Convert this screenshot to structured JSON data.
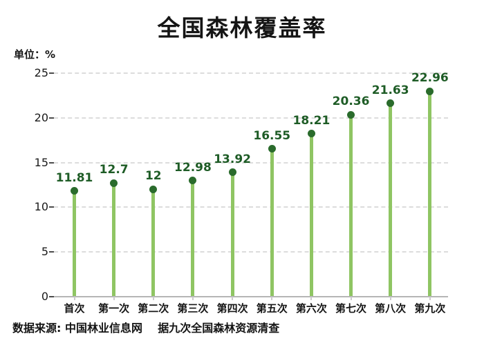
{
  "chart_data": {
    "type": "bar",
    "style": "lollipop",
    "title": "全国森林覆盖率",
    "unit_label": "单位：%",
    "categories": [
      "首次",
      "第一次",
      "第二次",
      "第三次",
      "第四次",
      "第五次",
      "第六次",
      "第七次",
      "第八次",
      "第九次"
    ],
    "values": [
      11.81,
      12.7,
      12,
      12.98,
      13.92,
      16.55,
      18.21,
      20.36,
      21.63,
      22.96
    ],
    "value_labels": [
      "11.81",
      "12.7",
      "12",
      "12.98",
      "13.92",
      "16.55",
      "18.21",
      "20.36",
      "21.63",
      "22.96"
    ],
    "ylim": [
      0,
      25
    ],
    "yticks": [
      0,
      5,
      10,
      15,
      20,
      25
    ],
    "grid": "horizontal dashed",
    "legend": "none",
    "source_text": "数据来源: 中国林业信息网    据九次全国森林资源清查",
    "colors": {
      "stem": "#8fc563",
      "dot": "#2a6b2c",
      "value_label": "#1e5c26",
      "gridline": "#dcdcdc",
      "axis": "#b5b5b5",
      "text": "#141414"
    }
  }
}
